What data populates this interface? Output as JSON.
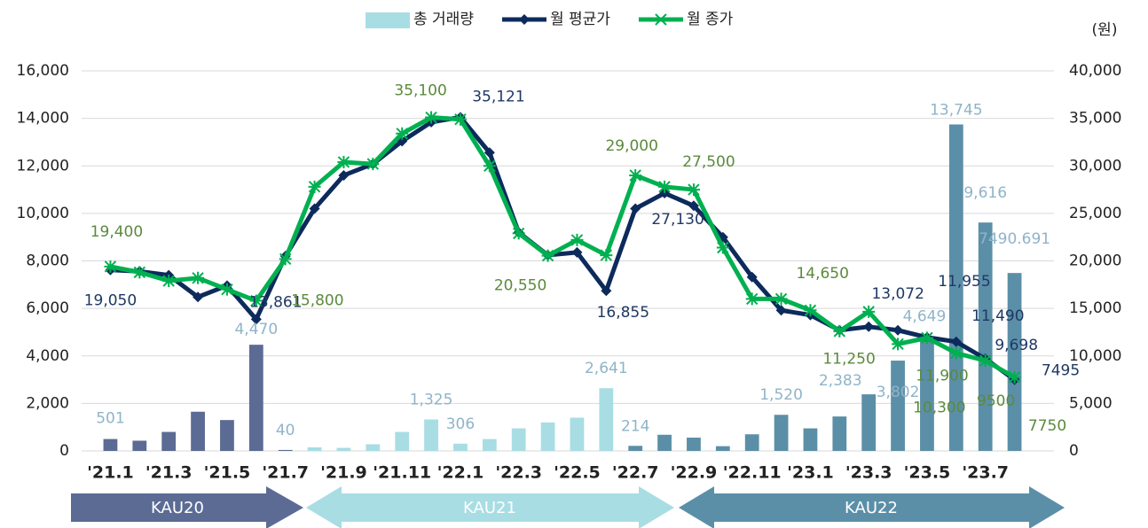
{
  "chart_data": {
    "type": "combo",
    "unit_label": "(원)",
    "categories": [
      "'21.1",
      null,
      "'21.3",
      null,
      "'21.5",
      null,
      "'21.7",
      null,
      "'21.9",
      null,
      "'21.11",
      null,
      "'22.1",
      null,
      "'22.3",
      null,
      "'22.5",
      null,
      "'22.7",
      null,
      "'22.9",
      null,
      "'22.11",
      null,
      "'23.1",
      null,
      "'23.3",
      null,
      "'23.5",
      null,
      "'23.7",
      null
    ],
    "series": [
      {
        "name": "총 거래량",
        "kind": "bar",
        "axis": "y",
        "color": "#a8dde4",
        "colors": [
          "#5b6b94",
          "#5b6b94",
          "#5b6b94",
          "#5b6b94",
          "#5b6b94",
          "#5b6b94",
          "#5b6b94",
          "#a8dde4",
          "#a8dde4",
          "#a8dde4",
          "#a8dde4",
          "#a8dde4",
          "#a8dde4",
          "#a8dde4",
          "#a8dde4",
          "#a8dde4",
          "#a8dde4",
          "#a8dde4",
          "#5b8fa8",
          "#5b8fa8",
          "#5b8fa8",
          "#5b8fa8",
          "#5b8fa8",
          "#5b8fa8",
          "#5b8fa8",
          "#5b8fa8",
          "#5b8fa8",
          "#5b8fa8",
          "#5b8fa8",
          "#5b8fa8",
          "#5b8fa8",
          "#5b8fa8"
        ],
        "values": [
          501,
          430,
          800,
          1650,
          1300,
          4470,
          40,
          150,
          130,
          280,
          800,
          1325,
          306,
          500,
          950,
          1200,
          1400,
          2641,
          214,
          680,
          560,
          200,
          700,
          1520,
          950,
          1450,
          2383,
          3802,
          4649,
          13745,
          9616,
          7490.691
        ],
        "value_labels": [
          "501",
          null,
          null,
          null,
          null,
          "4,470",
          "40",
          null,
          null,
          null,
          null,
          "1,325",
          "306",
          null,
          null,
          null,
          null,
          "2,641",
          "214",
          null,
          null,
          null,
          null,
          "1,520",
          null,
          null,
          "2,383",
          "3,802",
          "4,649",
          "13,745",
          "9,616",
          "7490.691"
        ]
      },
      {
        "name": "월 평균가",
        "kind": "line",
        "marker": "diamond",
        "axis": "y2",
        "color": "#0d2a5c",
        "values": [
          19050,
          18900,
          18500,
          16200,
          17400,
          13861,
          20500,
          25500,
          29000,
          30200,
          32600,
          34600,
          35121,
          31400,
          23000,
          20600,
          20900,
          16855,
          25500,
          27130,
          25800,
          22500,
          18300,
          14800,
          14300,
          12700,
          13072,
          12700,
          11955,
          11490,
          9698,
          7495
        ],
        "value_labels": [
          "19,050",
          null,
          null,
          null,
          null,
          "13,861",
          null,
          null,
          null,
          null,
          null,
          null,
          "35,121",
          null,
          null,
          null,
          null,
          "16,855",
          null,
          "27,130",
          null,
          null,
          null,
          null,
          null,
          null,
          "13,072",
          null,
          "11,955",
          "11,490",
          "9,698",
          "7495"
        ]
      },
      {
        "name": "월 종가",
        "kind": "line",
        "marker": "star",
        "axis": "y2",
        "color": "#00b050",
        "values": [
          19400,
          18800,
          17900,
          18200,
          17000,
          15800,
          20200,
          27800,
          30400,
          30200,
          33400,
          35100,
          34900,
          30000,
          22900,
          20550,
          22200,
          20600,
          29000,
          27800,
          27500,
          21400,
          16000,
          16000,
          14800,
          12600,
          14650,
          11250,
          11900,
          10300,
          9500,
          7750
        ],
        "value_labels": [
          "19,400",
          null,
          null,
          null,
          null,
          "15,800",
          null,
          null,
          null,
          null,
          null,
          "35,100",
          null,
          null,
          null,
          "20,550",
          null,
          null,
          "29,000",
          null,
          "27,500",
          null,
          null,
          null,
          null,
          null,
          "14,650",
          "11,250",
          "11,900",
          "10,300",
          "9500",
          "7750"
        ]
      }
    ],
    "ylim": [
      0,
      16000
    ],
    "yticks": [
      0,
      {
        "value": 2000,
        "label": "2,000"
      },
      {
        "value": 4000,
        "label": "4,000"
      },
      {
        "value": 6000,
        "label": "6,000"
      },
      {
        "value": 8000,
        "label": "8,000"
      },
      {
        "value": 10000,
        "label": "10,000"
      },
      {
        "value": 12000,
        "label": "12,000"
      },
      {
        "value": 14000,
        "label": "14,000"
      },
      {
        "value": 16000,
        "label": "16,000"
      }
    ],
    "y2lim": [
      0,
      40000
    ],
    "y2ticks": [
      0,
      {
        "value": 5000,
        "label": "5,000"
      },
      {
        "value": 10000,
        "label": "10,000"
      },
      {
        "value": 15000,
        "label": "15,000"
      },
      {
        "value": 20000,
        "label": "20,000"
      },
      {
        "value": 25000,
        "label": "25,000"
      },
      {
        "value": 30000,
        "label": "30,000"
      },
      {
        "value": 35000,
        "label": "35,000"
      },
      {
        "value": 40000,
        "label": "40,000"
      }
    ],
    "grid": true,
    "legend": "top",
    "periods": [
      "KAU20",
      "KAU21",
      "KAU22"
    ]
  }
}
